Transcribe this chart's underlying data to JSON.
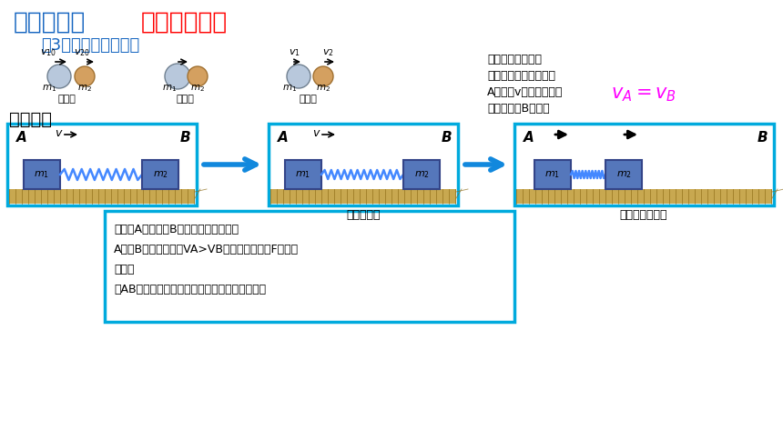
{
  "title_blue": "新知讲解：",
  "title_red": "二、弹性碰撞",
  "subtitle": "（3）放慢的碰撞过程",
  "bg_color": "#ffffff",
  "title_blue_color": "#1565C0",
  "title_red_color": "#FF0000",
  "subtitle_color": "#1565C0",
  "section_label": "压缩过程",
  "right_text": "碰撞过程可以看做\n是光滑水平面上的物体\nA以速度v向连有一弹簧\n的静止物体B运动。",
  "panel2_label": "刚接触弹簧",
  "panel3_label": "弹簧压缩到最短",
  "cyan_border": "#00AADD",
  "floor_color": "#C8A850",
  "block_face_color": "#5577BB",
  "block_edge_color": "#334488",
  "spring_color": "#4488FF",
  "magenta_color": "#FF00FF",
  "arrow_blue": "#1188DD",
  "box_text1": "刚开始A速度大于B速度，弹簧被压缩；",
  "box_text2": "A减速B加速，此过程VA>VB；加速度减小（F弹在增",
  "box_text3": "大）；",
  "box_text4": "当AB速度相等时，压缩最最大，弹簧压缩到最短"
}
